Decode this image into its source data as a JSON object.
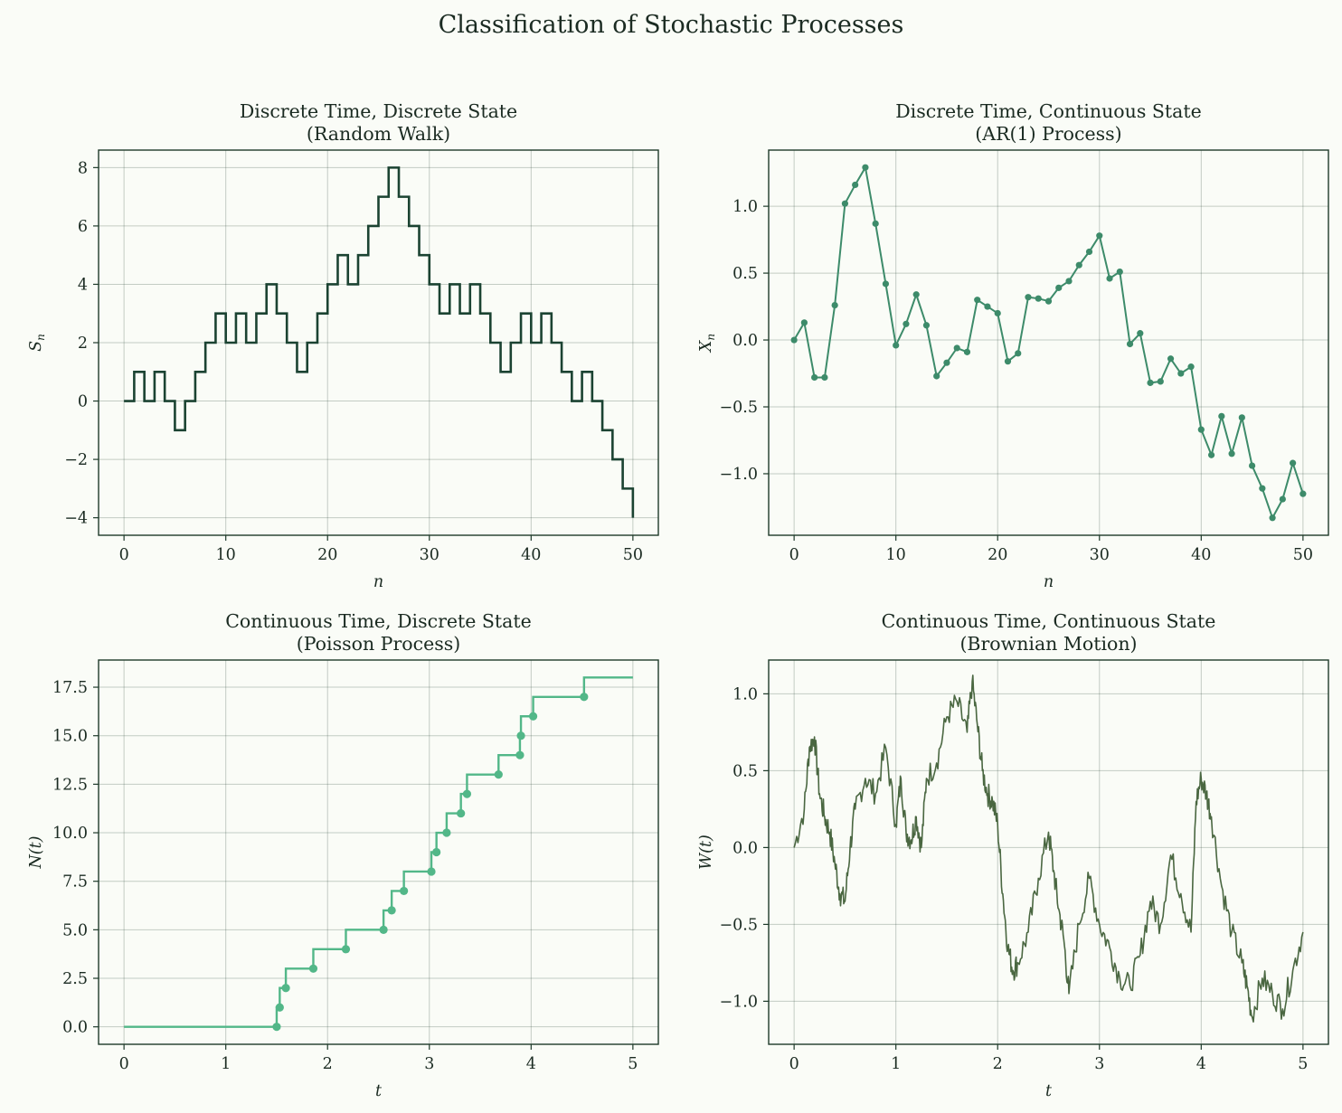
{
  "figure": {
    "title": "Classification of Stochastic Processes"
  },
  "chart_data": [
    {
      "id": "rw",
      "type": "step",
      "title_line1": "Discrete Time, Discrete State",
      "title_line2": "(Random Walk)",
      "xlabel": "n",
      "ylabel": "S_n",
      "xlim": [
        -2.5,
        52.5
      ],
      "ylim": [
        -4.6,
        8.6
      ],
      "xticks": [
        0,
        10,
        20,
        30,
        40,
        50
      ],
      "xtick_labels": [
        "0",
        "10",
        "20",
        "30",
        "40",
        "50"
      ],
      "yticks": [
        -4,
        -2,
        0,
        2,
        4,
        6,
        8
      ],
      "ytick_labels": [
        "−4",
        "−2",
        "0",
        "2",
        "4",
        "6",
        "8"
      ],
      "color": "#1b4332",
      "series": [
        {
          "name": "S_n",
          "x": [
            0,
            1,
            2,
            3,
            4,
            5,
            6,
            7,
            8,
            9,
            10,
            11,
            12,
            13,
            14,
            15,
            16,
            17,
            18,
            19,
            20,
            21,
            22,
            23,
            24,
            25,
            26,
            27,
            28,
            29,
            30,
            31,
            32,
            33,
            34,
            35,
            36,
            37,
            38,
            39,
            40,
            41,
            42,
            43,
            44,
            45,
            46,
            47,
            48,
            49,
            50
          ],
          "y": [
            0,
            1,
            0,
            1,
            0,
            -1,
            0,
            1,
            2,
            3,
            2,
            3,
            2,
            3,
            4,
            3,
            2,
            1,
            2,
            3,
            4,
            5,
            4,
            5,
            6,
            7,
            8,
            7,
            6,
            5,
            4,
            3,
            4,
            3,
            4,
            3,
            2,
            1,
            2,
            3,
            2,
            3,
            2,
            1,
            0,
            1,
            0,
            -1,
            -2,
            -3,
            -4
          ]
        }
      ]
    },
    {
      "id": "ar1",
      "type": "line",
      "title_line1": "Discrete Time, Continuous State",
      "title_line2": "(AR(1) Process)",
      "xlabel": "n",
      "ylabel": "X_n",
      "xlim": [
        -2.5,
        52.5
      ],
      "ylim": [
        -1.46,
        1.42
      ],
      "xticks": [
        0,
        10,
        20,
        30,
        40,
        50
      ],
      "xtick_labels": [
        "0",
        "10",
        "20",
        "30",
        "40",
        "50"
      ],
      "yticks": [
        -1.0,
        -0.5,
        0.0,
        0.5,
        1.0
      ],
      "ytick_labels": [
        "−1.0",
        "−0.5",
        "0.0",
        "0.5",
        "1.0"
      ],
      "color": "#3d8b6a",
      "series": [
        {
          "name": "X_n",
          "x": [
            0,
            1,
            2,
            3,
            4,
            5,
            6,
            7,
            8,
            9,
            10,
            11,
            12,
            13,
            14,
            15,
            16,
            17,
            18,
            19,
            20,
            21,
            22,
            23,
            24,
            25,
            26,
            27,
            28,
            29,
            30,
            31,
            32,
            33,
            34,
            35,
            36,
            37,
            38,
            39,
            40,
            41,
            42,
            43,
            44,
            45,
            46,
            47,
            48,
            49,
            50
          ],
          "y": [
            0.0,
            0.13,
            -0.28,
            -0.28,
            0.26,
            1.02,
            1.16,
            1.29,
            0.87,
            0.42,
            -0.04,
            0.12,
            0.34,
            0.11,
            -0.27,
            -0.17,
            -0.06,
            -0.09,
            0.3,
            0.25,
            0.2,
            -0.16,
            -0.1,
            0.32,
            0.31,
            0.29,
            0.39,
            0.44,
            0.56,
            0.66,
            0.78,
            0.46,
            0.51,
            -0.03,
            0.05,
            -0.32,
            -0.31,
            -0.14,
            -0.25,
            -0.2,
            -0.67,
            -0.86,
            -0.57,
            -0.85,
            -0.58,
            -0.94,
            -1.11,
            -1.33,
            -1.19,
            -0.92,
            -1.15
          ]
        }
      ]
    },
    {
      "id": "poisson",
      "type": "step",
      "title_line1": "Continuous Time, Discrete State",
      "title_line2": "(Poisson Process)",
      "xlabel": "t",
      "ylabel": "N(t)",
      "xlim": [
        -0.25,
        5.25
      ],
      "ylim": [
        -0.9,
        18.9
      ],
      "xticks": [
        0,
        1,
        2,
        3,
        4,
        5
      ],
      "xtick_labels": [
        "0",
        "1",
        "2",
        "3",
        "4",
        "5"
      ],
      "yticks": [
        0.0,
        2.5,
        5.0,
        7.5,
        10.0,
        12.5,
        15.0,
        17.5
      ],
      "ytick_labels": [
        "0.0",
        "2.5",
        "5.0",
        "7.5",
        "10.0",
        "12.5",
        "15.0",
        "17.5"
      ],
      "color": "#52b788",
      "series": [
        {
          "name": "N(t)",
          "event_times": [
            1.5,
            1.53,
            1.59,
            1.86,
            2.18,
            2.55,
            2.63,
            2.75,
            3.02,
            3.07,
            3.17,
            3.31,
            3.37,
            3.68,
            3.89,
            3.9,
            4.02,
            4.52
          ],
          "t_end": 5.0
        }
      ]
    },
    {
      "id": "brownian",
      "type": "line",
      "title_line1": "Continuous Time, Continuous State",
      "title_line2": "(Brownian Motion)",
      "xlabel": "t",
      "ylabel": "W(t)",
      "xlim": [
        -0.25,
        5.25
      ],
      "ylim": [
        -1.28,
        1.22
      ],
      "xticks": [
        0,
        1,
        2,
        3,
        4,
        5
      ],
      "xtick_labels": [
        "0",
        "1",
        "2",
        "3",
        "4",
        "5"
      ],
      "yticks": [
        -1.0,
        -0.5,
        0.0,
        0.5,
        1.0
      ],
      "ytick_labels": [
        "−1.0",
        "−0.5",
        "0.0",
        "0.5",
        "1.0"
      ],
      "color": "#4a6741",
      "series": [
        {
          "name": "W(t)",
          "x": [
            0,
            0.1,
            0.15,
            0.2,
            0.25,
            0.3,
            0.35,
            0.4,
            0.45,
            0.5,
            0.55,
            0.6,
            0.7,
            0.8,
            0.9,
            1.0,
            1.05,
            1.1,
            1.15,
            1.2,
            1.25,
            1.3,
            1.4,
            1.5,
            1.6,
            1.7,
            1.75,
            1.8,
            1.85,
            1.9,
            1.95,
            2.0,
            2.05,
            2.1,
            2.15,
            2.2,
            2.3,
            2.4,
            2.5,
            2.55,
            2.6,
            2.65,
            2.7,
            2.8,
            2.9,
            3.0,
            3.1,
            3.2,
            3.3,
            3.4,
            3.5,
            3.6,
            3.7,
            3.8,
            3.9,
            3.95,
            4.0,
            4.05,
            4.1,
            4.2,
            4.3,
            4.4,
            4.45,
            4.5,
            4.6,
            4.7,
            4.8,
            4.9,
            5.0
          ],
          "y": [
            0.0,
            0.25,
            0.65,
            0.72,
            0.35,
            0.2,
            0.1,
            -0.1,
            -0.3,
            -0.35,
            0.0,
            0.25,
            0.45,
            0.35,
            0.65,
            0.15,
            0.45,
            0.1,
            0.05,
            0.2,
            0.0,
            0.45,
            0.55,
            0.85,
            0.95,
            0.75,
            1.08,
            0.8,
            0.5,
            0.35,
            0.3,
            0.15,
            -0.3,
            -0.65,
            -0.8,
            -0.75,
            -0.55,
            -0.2,
            0.1,
            -0.15,
            -0.4,
            -0.6,
            -0.95,
            -0.5,
            -0.2,
            -0.5,
            -0.65,
            -0.85,
            -0.9,
            -0.7,
            -0.35,
            -0.5,
            -0.05,
            -0.3,
            -0.55,
            0.3,
            0.45,
            0.35,
            0.2,
            -0.25,
            -0.55,
            -0.75,
            -0.9,
            -1.1,
            -0.85,
            -0.95,
            -1.05,
            -0.8,
            -0.55
          ]
        }
      ]
    }
  ]
}
